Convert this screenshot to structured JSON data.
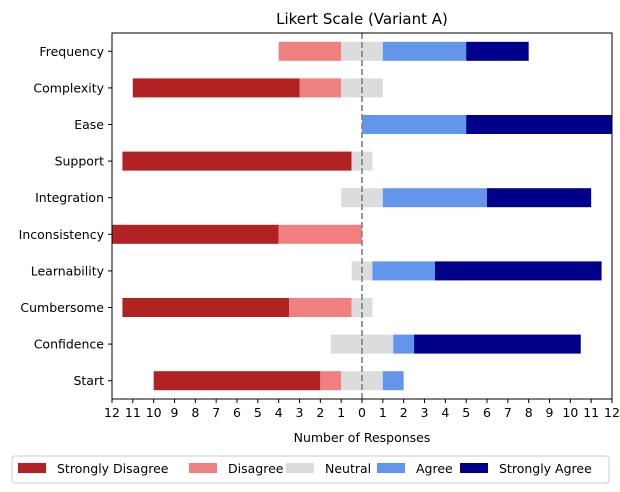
{
  "chart_data": {
    "type": "bar",
    "orientation": "horizontal",
    "stacked": "diverging",
    "title": "Likert Scale (Variant A)",
    "xlabel": "Number of Responses",
    "ylabel": "",
    "xlim": [
      -12,
      12
    ],
    "x_tick_labels": [
      "12",
      "11",
      "10",
      "9",
      "8",
      "7",
      "6",
      "5",
      "4",
      "3",
      "2",
      "1",
      "0",
      "1",
      "2",
      "3",
      "4",
      "5",
      "6",
      "7",
      "8",
      "9",
      "10",
      "11",
      "12"
    ],
    "center_line": {
      "x": 0,
      "style": "dashed",
      "color": "#808080"
    },
    "legend_position": "bottom",
    "categories": [
      "Frequency",
      "Complexity",
      "Ease",
      "Support",
      "Integration",
      "Inconsistency",
      "Learnability",
      "Cumbersome",
      "Confidence",
      "Start"
    ],
    "series": [
      {
        "name": "Strongly Disagree",
        "color": "#b22222",
        "values": [
          0,
          8,
          0,
          11,
          0,
          8,
          0,
          8,
          0,
          8
        ]
      },
      {
        "name": "Disagree",
        "color": "#f08080",
        "values": [
          3,
          2,
          0,
          0,
          0,
          4,
          0,
          3,
          0,
          1
        ]
      },
      {
        "name": "Neutral",
        "color": "#dcdcdc",
        "values": [
          2,
          2,
          0,
          1,
          2,
          0,
          1,
          1,
          3,
          2
        ]
      },
      {
        "name": "Agree",
        "color": "#6495ed",
        "values": [
          4,
          0,
          5,
          0,
          5,
          0,
          3,
          0,
          1,
          1
        ]
      },
      {
        "name": "Strongly Agree",
        "color": "#00008b",
        "values": [
          3,
          0,
          7,
          0,
          5,
          0,
          8,
          0,
          8,
          0
        ]
      }
    ]
  }
}
